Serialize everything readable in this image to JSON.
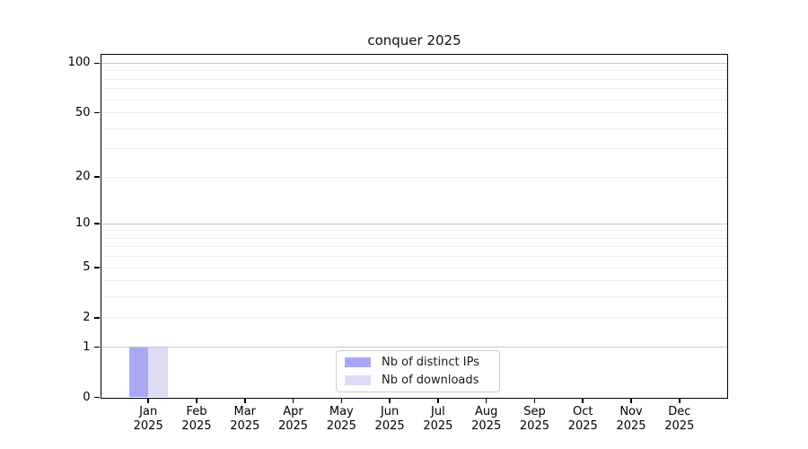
{
  "title": "conquer 2025",
  "legend": {
    "items": [
      {
        "name": "distinct-ips",
        "label": "Nb of distinct IPs",
        "color": "#a8a8f3"
      },
      {
        "name": "downloads",
        "label": "Nb of downloads",
        "color": "#dcdcf6"
      }
    ]
  },
  "colors": {
    "grid_major": "#c6c6c6",
    "grid_minor": "#ececec",
    "axis": "#000000",
    "legend_border": "#cccccc"
  },
  "chart_data": {
    "type": "bar",
    "title": "conquer 2025",
    "xlabel": "",
    "ylabel": "",
    "y_scale": "log1p",
    "ylim": [
      0,
      113.3
    ],
    "categories": [
      "Jan 2025",
      "Feb 2025",
      "Mar 2025",
      "Apr 2025",
      "May 2025",
      "Jun 2025",
      "Jul 2025",
      "Aug 2025",
      "Sep 2025",
      "Oct 2025",
      "Nov 2025",
      "Dec 2025"
    ],
    "series": [
      {
        "name": "Nb of distinct IPs",
        "color": "#a8a8f3",
        "values": [
          1,
          0,
          0,
          0,
          0,
          0,
          0,
          0,
          0,
          0,
          0,
          0
        ]
      },
      {
        "name": "Nb of downloads",
        "color": "#dcdcf6",
        "values": [
          1,
          0,
          0,
          0,
          0,
          0,
          0,
          0,
          0,
          0,
          0,
          0
        ]
      }
    ],
    "y_ticks": [
      0,
      1,
      2,
      5,
      10,
      20,
      50,
      100
    ],
    "y_gridlines_major": [
      1,
      10,
      100
    ],
    "y_gridlines_minor": [
      2,
      3,
      4,
      5,
      6,
      7,
      8,
      9,
      20,
      30,
      40,
      50,
      60,
      70,
      80,
      90
    ],
    "grid": true,
    "legend_position": "lower center"
  }
}
